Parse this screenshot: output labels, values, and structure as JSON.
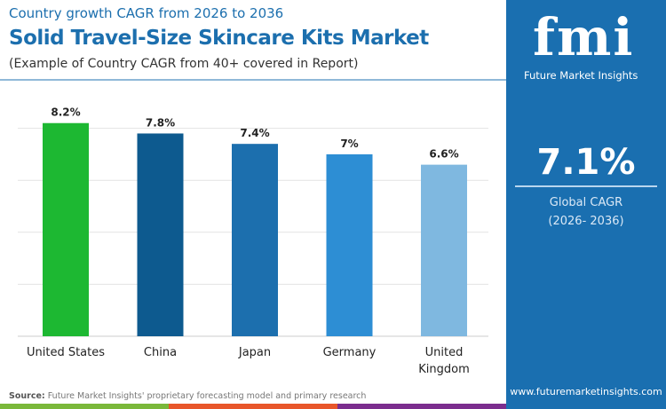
{
  "header": {
    "subtitle": "Country growth CAGR from 2026 to 2036",
    "title": "Solid Travel-Size Skincare Kits Market",
    "note": "(Example of Country CAGR from 40+ covered in Report)"
  },
  "panel": {
    "logo": "fmi",
    "logo_text": "Future Market Insights",
    "global_value": "7.1%",
    "global_label": "Global CAGR",
    "global_period": "(2026- 2036)",
    "url": "www.futuremarketinsights.com",
    "color": "#1a6fb0"
  },
  "footer": {
    "source_label": "Source:",
    "source_text": "Future Market Insights' proprietary forecasting model and primary research",
    "stripe_colors": [
      "#7ab83a",
      "#e8562a",
      "#7b2d8e"
    ]
  },
  "chart_data": {
    "type": "bar",
    "categories": [
      "United States",
      "China",
      "Japan",
      "Germany",
      "United Kingdom"
    ],
    "values": [
      8.2,
      7.8,
      7.4,
      7,
      6.6
    ],
    "data_labels": [
      "8.2%",
      "7.8%",
      "7.4%",
      "7%",
      "6.6%"
    ],
    "colors": [
      "#1db832",
      "#0d5a8f",
      "#1c6fae",
      "#2d8ed4",
      "#7fb8e0"
    ],
    "ylim": [
      0,
      8.2
    ],
    "grid": true
  }
}
